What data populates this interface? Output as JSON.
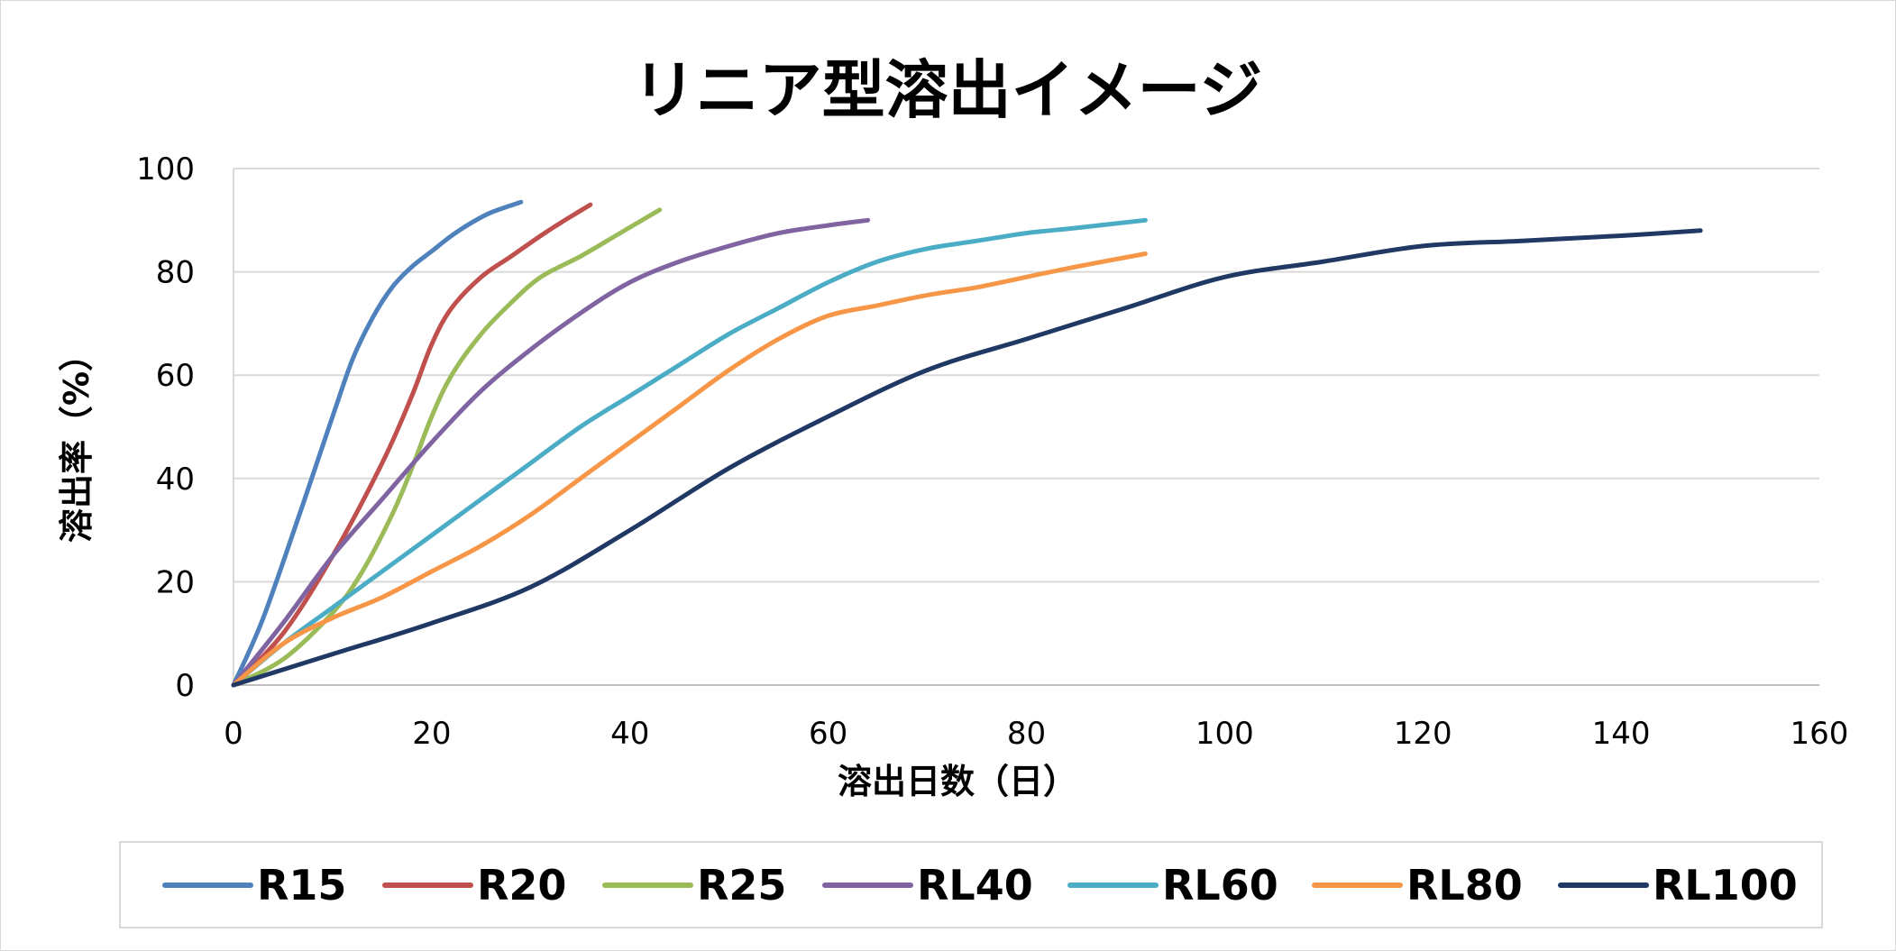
{
  "chart_data": {
    "type": "line",
    "title": "リニア型溶出イメージ",
    "xlabel": "溶出日数（日）",
    "ylabel": "溶出率（%）",
    "xlim": [
      0,
      160
    ],
    "ylim": [
      0,
      100
    ],
    "xticks": [
      0,
      20,
      40,
      60,
      80,
      100,
      120,
      140,
      160
    ],
    "yticks": [
      0,
      20,
      40,
      60,
      80,
      100
    ],
    "grid": "horizontal",
    "legend_position": "bottom",
    "series": [
      {
        "name": "R15",
        "color": "#4F81BD",
        "points": [
          [
            0,
            0
          ],
          [
            3,
            13
          ],
          [
            7,
            35
          ],
          [
            10,
            52
          ],
          [
            12,
            63
          ],
          [
            14,
            71
          ],
          [
            16,
            77
          ],
          [
            18,
            81
          ],
          [
            20,
            84
          ],
          [
            22,
            87
          ],
          [
            24,
            89.5
          ],
          [
            26,
            91.5
          ],
          [
            29,
            93.5
          ]
        ]
      },
      {
        "name": "R20",
        "color": "#C0504D",
        "points": [
          [
            0,
            0
          ],
          [
            5,
            10
          ],
          [
            10,
            25
          ],
          [
            15,
            43
          ],
          [
            18,
            56
          ],
          [
            20,
            66
          ],
          [
            22,
            73
          ],
          [
            25,
            79
          ],
          [
            28,
            83
          ],
          [
            31,
            87
          ],
          [
            33,
            89.5
          ],
          [
            36,
            93
          ]
        ]
      },
      {
        "name": "R25",
        "color": "#9BBB59",
        "points": [
          [
            0,
            0
          ],
          [
            5,
            5
          ],
          [
            10,
            14
          ],
          [
            13,
            22
          ],
          [
            16,
            33
          ],
          [
            18,
            42
          ],
          [
            20,
            52
          ],
          [
            22,
            60
          ],
          [
            25,
            68
          ],
          [
            28,
            74
          ],
          [
            31,
            79
          ],
          [
            35,
            83
          ],
          [
            39,
            87.5
          ],
          [
            43,
            92
          ]
        ]
      },
      {
        "name": "RL40",
        "color": "#8064A2",
        "points": [
          [
            0,
            0
          ],
          [
            5,
            12
          ],
          [
            10,
            25
          ],
          [
            15,
            36
          ],
          [
            20,
            47
          ],
          [
            25,
            57
          ],
          [
            30,
            65
          ],
          [
            35,
            72
          ],
          [
            40,
            78
          ],
          [
            45,
            82
          ],
          [
            50,
            85
          ],
          [
            55,
            87.5
          ],
          [
            60,
            89
          ],
          [
            64,
            90
          ]
        ]
      },
      {
        "name": "RL60",
        "color": "#4BACC6",
        "points": [
          [
            0,
            0
          ],
          [
            5,
            8
          ],
          [
            10,
            15
          ],
          [
            15,
            22
          ],
          [
            20,
            29
          ],
          [
            25,
            36
          ],
          [
            30,
            43
          ],
          [
            35,
            50
          ],
          [
            40,
            56
          ],
          [
            45,
            62
          ],
          [
            50,
            68
          ],
          [
            55,
            73
          ],
          [
            60,
            78
          ],
          [
            65,
            82
          ],
          [
            70,
            84.5
          ],
          [
            75,
            86
          ],
          [
            80,
            87.5
          ],
          [
            85,
            88.5
          ],
          [
            92,
            90
          ]
        ]
      },
      {
        "name": "RL80",
        "color": "#F79646",
        "points": [
          [
            0,
            0
          ],
          [
            5,
            8
          ],
          [
            10,
            13
          ],
          [
            15,
            17
          ],
          [
            20,
            22
          ],
          [
            25,
            27
          ],
          [
            30,
            33
          ],
          [
            35,
            40
          ],
          [
            40,
            47
          ],
          [
            45,
            54
          ],
          [
            50,
            61
          ],
          [
            55,
            67
          ],
          [
            60,
            71.5
          ],
          [
            65,
            73.5
          ],
          [
            70,
            75.5
          ],
          [
            75,
            77
          ],
          [
            80,
            79
          ],
          [
            85,
            81
          ],
          [
            92,
            83.5
          ]
        ]
      },
      {
        "name": "RL100",
        "color": "#1F3864",
        "points": [
          [
            0,
            0
          ],
          [
            10,
            6
          ],
          [
            20,
            12
          ],
          [
            30,
            19
          ],
          [
            40,
            30
          ],
          [
            50,
            42
          ],
          [
            60,
            52
          ],
          [
            70,
            61
          ],
          [
            80,
            67
          ],
          [
            90,
            73
          ],
          [
            100,
            79
          ],
          [
            110,
            82
          ],
          [
            120,
            85
          ],
          [
            130,
            86
          ],
          [
            140,
            87
          ],
          [
            148,
            88
          ]
        ]
      }
    ]
  }
}
